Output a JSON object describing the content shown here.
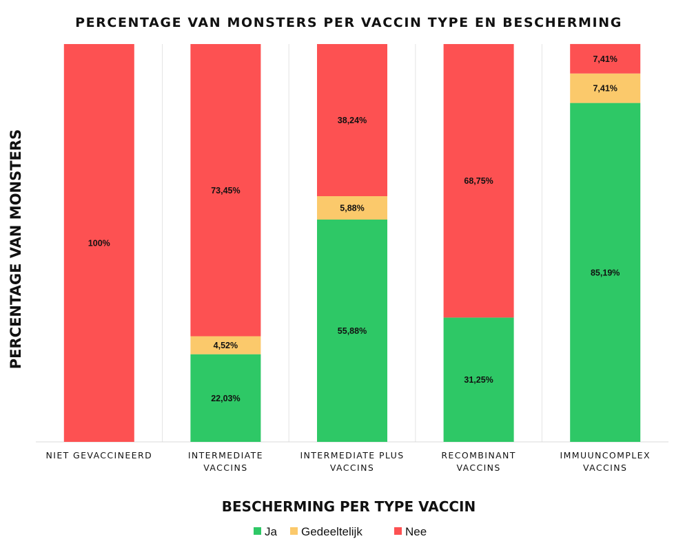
{
  "chart_data": {
    "type": "bar",
    "stacked": true,
    "title": "PERCENTAGE VAN MONSTERS PER VACCIN TYPE EN BESCHERMING",
    "xlabel": "BESCHERMING PER TYPE VACCIN",
    "ylabel": "PERCENTAGE VAN MONSTERS",
    "ylim": [
      0,
      100
    ],
    "grid": false,
    "legend_position": "bottom",
    "categories": [
      [
        "NIET GEVACCINEERD"
      ],
      [
        "INTERMEDIATE",
        "VACCINS"
      ],
      [
        "INTERMEDIATE PLUS",
        "VACCINS"
      ],
      [
        "RECOMBINANT",
        "VACCINS"
      ],
      [
        "IMMUUNCOMPLEX",
        "VACCINS"
      ]
    ],
    "series": [
      {
        "name": "Ja",
        "color": "#2ec866",
        "values": [
          0,
          22.03,
          55.88,
          31.25,
          85.19
        ],
        "labels": [
          "",
          "22,03%",
          "55,88%",
          "31,25%",
          "85,19%"
        ]
      },
      {
        "name": "Gedeeltelijk",
        "color": "#fbc96b",
        "values": [
          0,
          4.52,
          5.88,
          0,
          7.41
        ],
        "labels": [
          "",
          "4,52%",
          "5,88%",
          "",
          "7,41%"
        ]
      },
      {
        "name": "Nee",
        "color": "#fd5152",
        "values": [
          100,
          73.45,
          38.24,
          68.75,
          7.41
        ],
        "labels": [
          "100%",
          "73,45%",
          "38,24%",
          "68,75%",
          "7,41%"
        ]
      }
    ]
  }
}
